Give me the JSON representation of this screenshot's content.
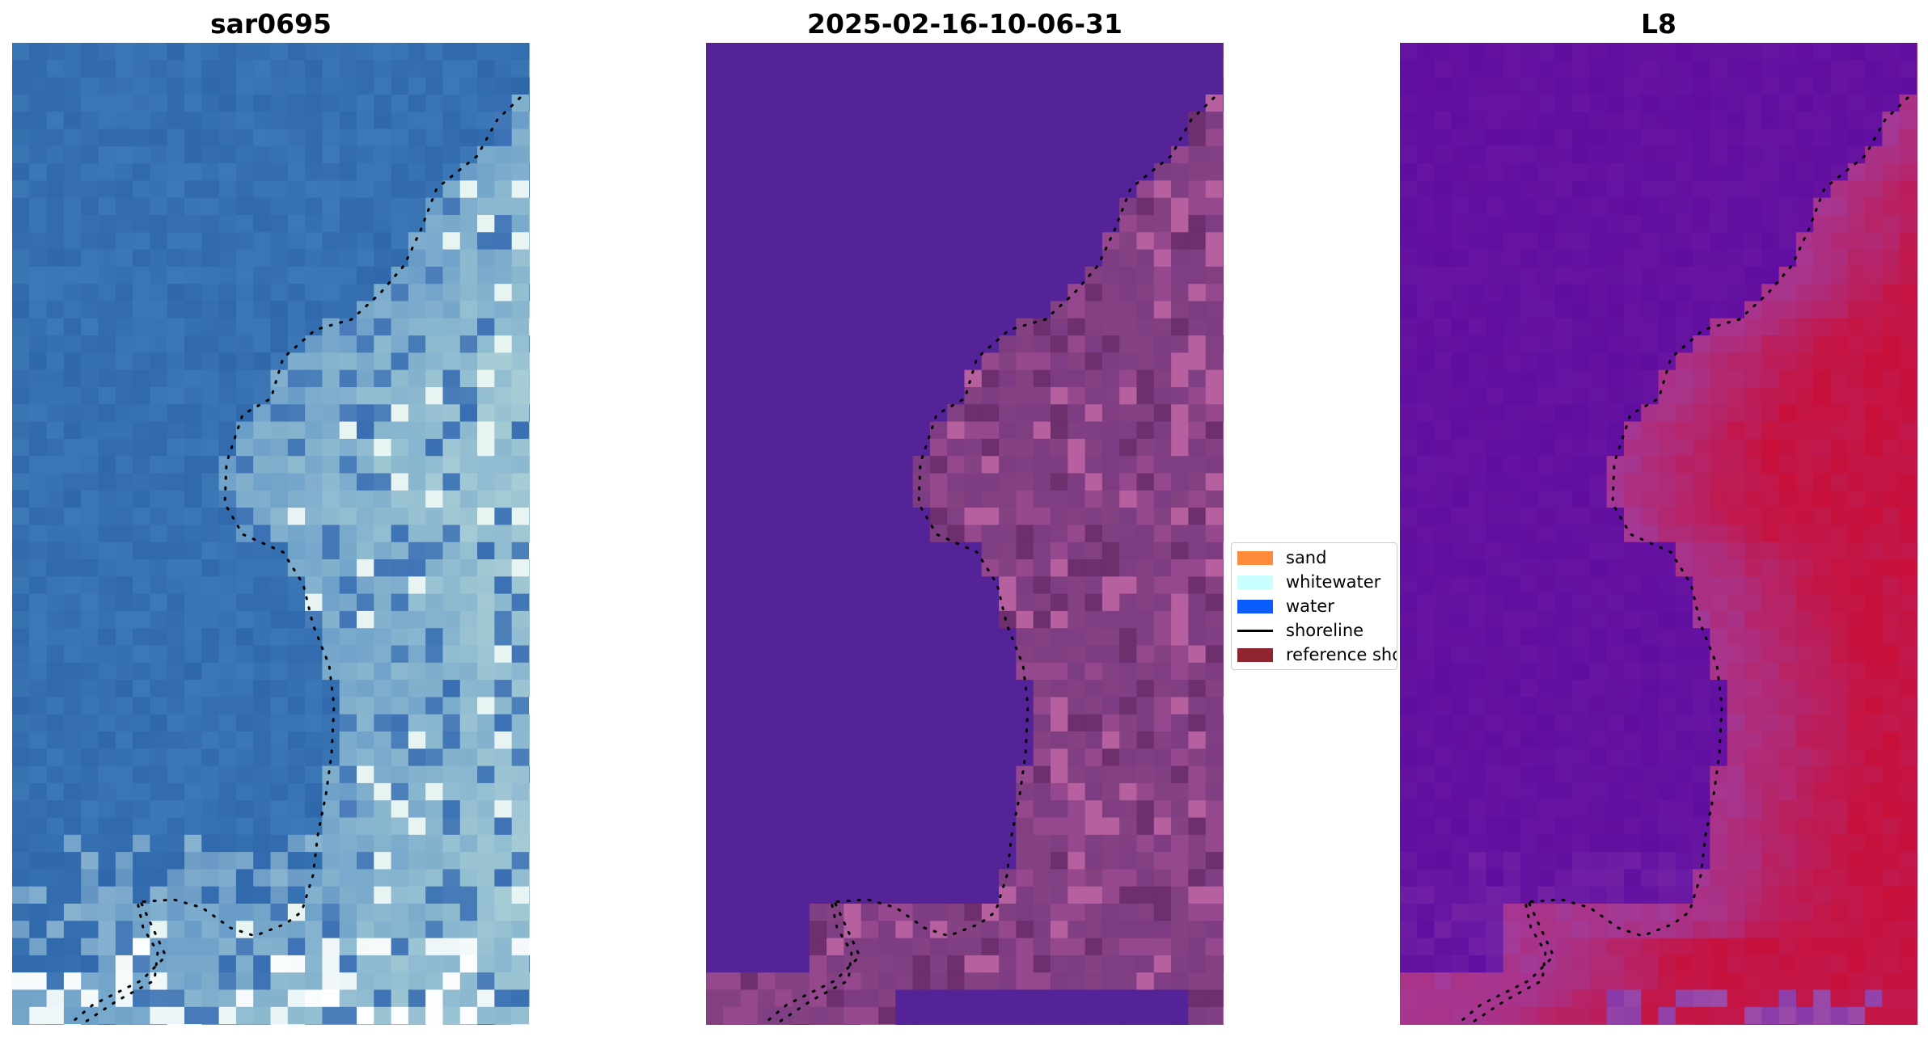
{
  "panels": [
    {
      "title": "sar0695",
      "style": "rgb"
    },
    {
      "title": "2025-02-16-10-06-31",
      "style": "classified"
    },
    {
      "title": "L8",
      "style": "index"
    }
  ],
  "legend": {
    "items": [
      {
        "label": "sand",
        "color": "#ff8c3c",
        "kind": "patch"
      },
      {
        "label": "whitewater",
        "color": "#c8ffff",
        "kind": "patch"
      },
      {
        "label": "water",
        "color": "#0a5cff",
        "kind": "patch"
      },
      {
        "label": "shoreline",
        "color": "#000000",
        "kind": "line"
      },
      {
        "label": "reference sho",
        "color": "#8f2530",
        "kind": "patch"
      }
    ]
  },
  "colors": {
    "water_rgb": "#3670b2",
    "classified_water": "#552398",
    "classified_land": "#7a3a82",
    "index_low": "#600ea0",
    "index_high": "#c8103a",
    "shoreline_dots": "#000000"
  }
}
